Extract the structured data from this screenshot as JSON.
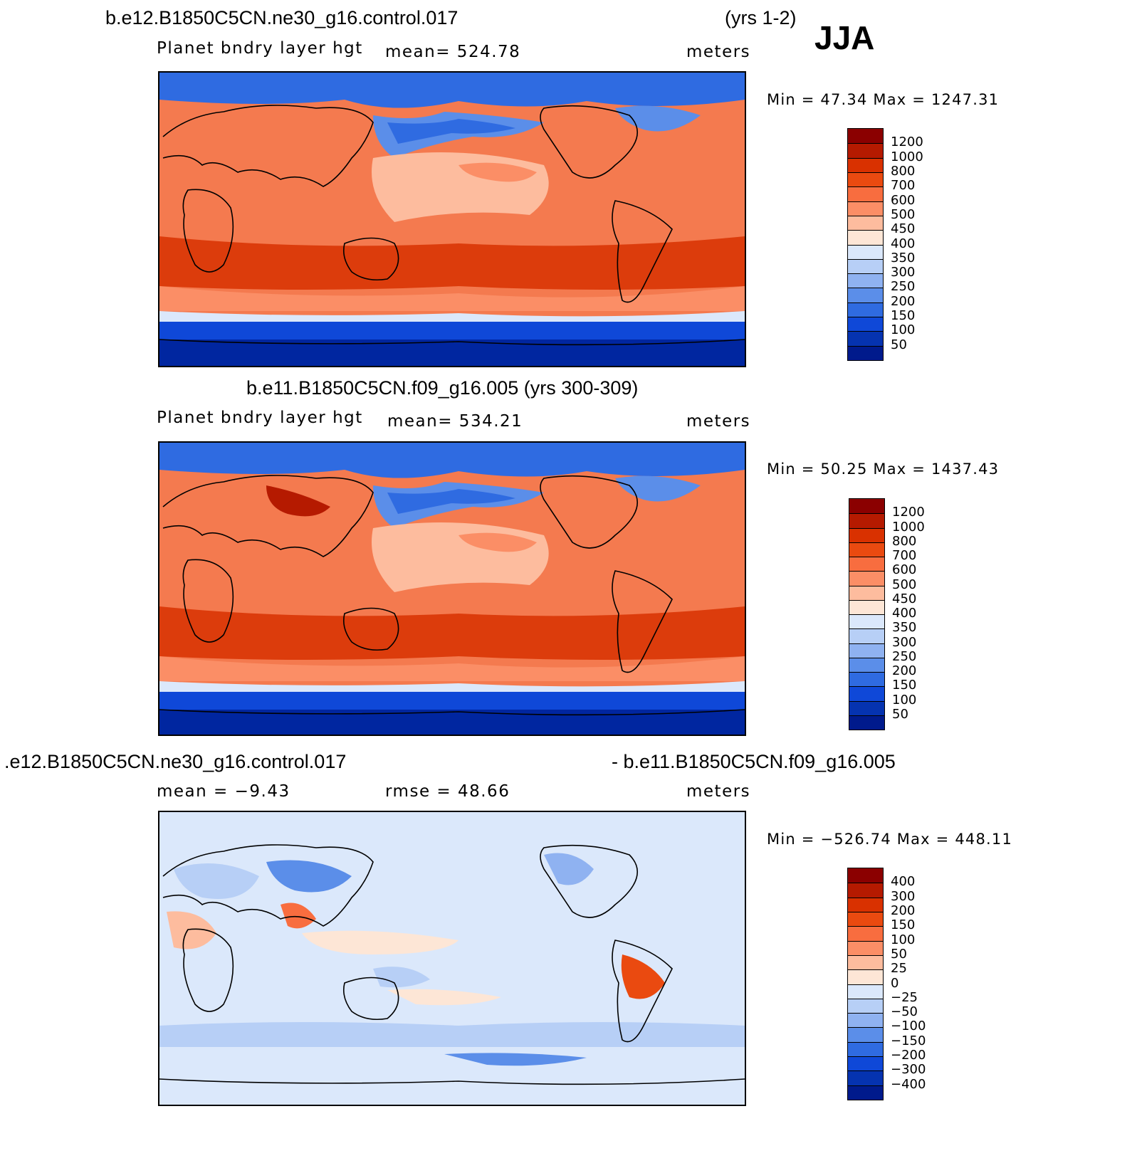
{
  "season": "JJA",
  "panels": [
    {
      "title_left": "b.e12.B1850C5CN.ne30_g16.control.017",
      "title_right": "(yrs 1-2)",
      "variable": "Planet bndry layer hgt",
      "stat1": "mean= 524.78",
      "stat2": "",
      "units": "meters",
      "minmax": "Min =   47.34 Max = 1247.31",
      "colorbar": [
        "1200",
        "1000",
        "800",
        "700",
        "600",
        "500",
        "450",
        "400",
        "350",
        "300",
        "250",
        "200",
        "150",
        "100",
        "50"
      ],
      "fill": "pos"
    },
    {
      "title_left": "b.e11.B1850C5CN.f09_g16.005 (yrs 300-309)",
      "title_right": "",
      "variable": "Planet bndry layer hgt",
      "stat1": "mean= 534.21",
      "stat2": "",
      "units": "meters",
      "minmax": "Min =   50.25 Max = 1437.43",
      "colorbar": [
        "1200",
        "1000",
        "800",
        "700",
        "600",
        "500",
        "450",
        "400",
        "350",
        "300",
        "250",
        "200",
        "150",
        "100",
        "50"
      ],
      "fill": "pos"
    },
    {
      "title_left": ".e12.B1850C5CN.ne30_g16.control.017",
      "title_right": "- b.e11.B1850C5CN.f09_g16.005",
      "variable": "mean =   −9.43",
      "stat1": "rmse =   48.66",
      "stat2": "",
      "units": "meters",
      "minmax": "Min = −526.74 Max = 448.11",
      "colorbar": [
        "400",
        "300",
        "200",
        "150",
        "100",
        "50",
        "25",
        "0",
        "−25",
        "−50",
        "−100",
        "−150",
        "−200",
        "−300",
        "−400"
      ],
      "fill": "diff"
    }
  ],
  "palette": [
    "#8b0000",
    "#b51a00",
    "#d93100",
    "#ea4a10",
    "#f86d3f",
    "#fb8e66",
    "#fdbc9e",
    "#fde6d6",
    "#dbe8fb",
    "#b7cff6",
    "#8fb2f1",
    "#5b8ee9",
    "#2f6be1",
    "#0f48d8",
    "#0533b0",
    "#001a8c"
  ],
  "colors": {
    "pos_mid": "#f47a4f",
    "pos_high": "#dc3c0c",
    "cold": "#0f48d8",
    "very_cold": "#0026a0",
    "diff_bg": "#dbe8fb"
  }
}
